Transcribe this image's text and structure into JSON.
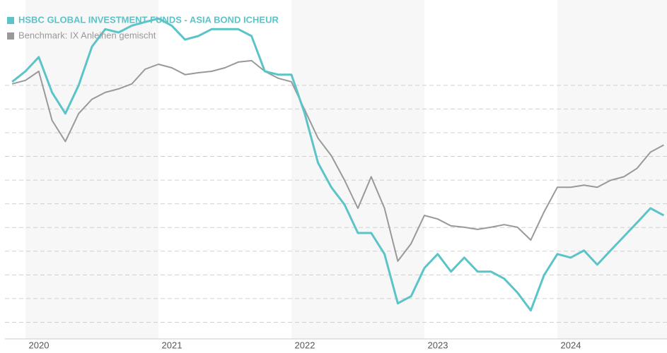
{
  "chart_data": {
    "type": "line",
    "categories": [
      null,
      "2020",
      null,
      null,
      null,
      null,
      null,
      null,
      null,
      null,
      null,
      "2021",
      null,
      null,
      null,
      null,
      null,
      null,
      null,
      null,
      null,
      "2022",
      null,
      null,
      null,
      null,
      null,
      null,
      null,
      null,
      null,
      "2023",
      null,
      null,
      null,
      null,
      null,
      null,
      null,
      null,
      null,
      "2024",
      null,
      null,
      null,
      null,
      null,
      null,
      null,
      null
    ],
    "series": [
      {
        "name": "HSBC GLOBAL INVESTMENT FUNDS - ASIA BOND ICHEUR",
        "color": "#5bc4c9",
        "values": [
          10.15,
          10.59,
          11.19,
          9.7,
          8.81,
          10.0,
          11.63,
          12.37,
          12.23,
          12.52,
          12.67,
          12.82,
          12.52,
          11.93,
          12.08,
          12.37,
          12.37,
          12.37,
          12.08,
          10.59,
          10.45,
          10.45,
          8.81,
          6.73,
          5.7,
          4.96,
          3.77,
          3.77,
          2.88,
          0.8,
          1.1,
          2.29,
          2.88,
          2.14,
          2.73,
          2.14,
          2.14,
          1.84,
          1.25,
          0.5,
          1.99,
          2.88,
          2.73,
          3.03,
          2.43,
          3.03,
          3.62,
          4.21,
          4.81,
          4.51
        ]
      },
      {
        "name": "Benchmark: IX Anleihen gemischt",
        "color": "#999999",
        "values": [
          10.06,
          10.21,
          10.59,
          8.52,
          7.63,
          8.81,
          9.41,
          9.7,
          9.85,
          10.06,
          10.68,
          10.89,
          10.74,
          10.45,
          10.53,
          10.59,
          10.74,
          10.98,
          11.04,
          10.59,
          10.3,
          10.15,
          8.96,
          7.77,
          7.03,
          5.99,
          4.81,
          6.14,
          4.81,
          2.58,
          3.32,
          4.51,
          4.36,
          4.07,
          4.01,
          3.92,
          4.01,
          4.12,
          4.01,
          3.47,
          4.66,
          5.7,
          5.7,
          5.79,
          5.7,
          5.99,
          6.14,
          6.5,
          7.18,
          7.48
        ]
      }
    ],
    "ylim": [
      -0.7,
      13.6
    ],
    "yticks": [
      0,
      1,
      2,
      3,
      4,
      5,
      6,
      7,
      8,
      9,
      10
    ],
    "grid": true,
    "legend": "top-left"
  }
}
